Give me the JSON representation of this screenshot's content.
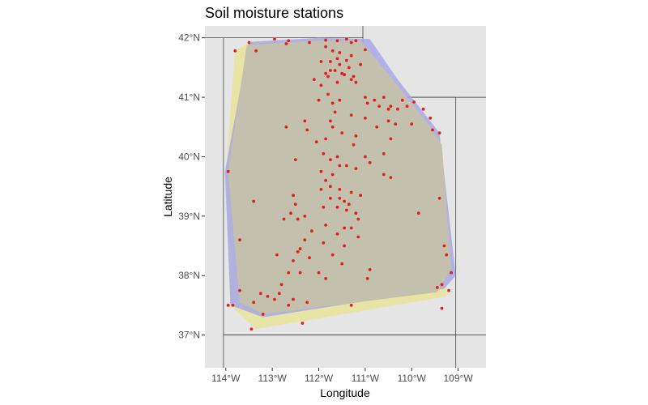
{
  "chart_data": {
    "type": "scatter",
    "title": "Soil moisture stations",
    "xlabel": "Longitude",
    "ylabel": "Latitude",
    "xlim": [
      -114.45,
      -108.4
    ],
    "ylim": [
      36.45,
      42.2
    ],
    "x_ticks": [
      {
        "value": -114,
        "label": "114°W"
      },
      {
        "value": -113,
        "label": "113°W"
      },
      {
        "value": -112,
        "label": "112°W"
      },
      {
        "value": -111,
        "label": "111°W"
      },
      {
        "value": -110,
        "label": "110°W"
      },
      {
        "value": -109,
        "label": "109°W"
      }
    ],
    "y_ticks": [
      {
        "value": 37,
        "label": "37°N"
      },
      {
        "value": 38,
        "label": "38°N"
      },
      {
        "value": 39,
        "label": "39°N"
      },
      {
        "value": 40,
        "label": "40°N"
      },
      {
        "value": 41,
        "label": "41°N"
      },
      {
        "value": 42,
        "label": "42°N"
      }
    ],
    "background_color": "#e5e5e5",
    "state_line_color": "#333333",
    "point_color": "#e0201e",
    "state_boundaries": [
      [
        [
          -114.05,
          42.0
        ],
        [
          -111.05,
          42.0
        ],
        [
          -111.05,
          41.0
        ],
        [
          -109.05,
          41.0
        ],
        [
          -109.05,
          37.0
        ],
        [
          -114.05,
          37.0
        ],
        [
          -114.05,
          42.0
        ]
      ],
      [
        [
          -111.05,
          42.25
        ],
        [
          -111.05,
          42.0
        ]
      ],
      [
        [
          -111.05,
          41.0
        ],
        [
          -108.3,
          41.0
        ]
      ],
      [
        [
          -109.05,
          37.0
        ],
        [
          -109.05,
          36.4
        ]
      ],
      [
        [
          -114.05,
          37.0
        ],
        [
          -114.05,
          36.4
        ]
      ],
      [
        [
          -114.05,
          42.0
        ],
        [
          -114.5,
          42.0
        ]
      ],
      [
        [
          -114.05,
          37.0
        ],
        [
          -108.3,
          37.0
        ]
      ]
    ],
    "hulls": [
      {
        "color": "#e8e48a",
        "opacity": 0.7,
        "points": [
          [
            -113.8,
            41.78
          ],
          [
            -113.5,
            41.92
          ],
          [
            -112.0,
            41.98
          ],
          [
            -111.1,
            41.98
          ],
          [
            -110.3,
            41.2
          ],
          [
            -109.45,
            40.28
          ],
          [
            -109.25,
            38.2
          ],
          [
            -109.25,
            37.65
          ],
          [
            -113.35,
            37.1
          ],
          [
            -113.9,
            37.5
          ],
          [
            -114.0,
            39.75
          ]
        ]
      },
      {
        "color": "#a8a8e8",
        "opacity": 0.85,
        "points": [
          [
            -113.5,
            41.93
          ],
          [
            -112.0,
            42.0
          ],
          [
            -110.9,
            41.98
          ],
          [
            -110.3,
            41.3
          ],
          [
            -109.65,
            40.65
          ],
          [
            -109.4,
            40.4
          ],
          [
            -109.05,
            38.0
          ],
          [
            -109.3,
            37.78
          ],
          [
            -113.2,
            37.3
          ],
          [
            -113.9,
            37.5
          ],
          [
            -114.02,
            39.75
          ]
        ]
      },
      {
        "color": "#c4c0ae",
        "opacity": 1,
        "points": [
          [
            -113.55,
            41.88
          ],
          [
            -112.0,
            41.95
          ],
          [
            -111.1,
            41.95
          ],
          [
            -110.2,
            41.1
          ],
          [
            -109.6,
            40.5
          ],
          [
            -109.35,
            40.2
          ],
          [
            -109.15,
            38.1
          ],
          [
            -109.45,
            37.72
          ],
          [
            -113.2,
            37.35
          ],
          [
            -113.7,
            37.55
          ],
          [
            -113.95,
            39.75
          ]
        ]
      }
    ],
    "points": [
      [
        -113.8,
        41.78
      ],
      [
        -113.5,
        41.92
      ],
      [
        -112.95,
        41.98
      ],
      [
        -112.65,
        41.95
      ],
      [
        -112.2,
        41.92
      ],
      [
        -111.85,
        41.96
      ],
      [
        -111.6,
        41.95
      ],
      [
        -111.4,
        41.98
      ],
      [
        -111.3,
        41.92
      ],
      [
        -111.2,
        41.95
      ],
      [
        -111.0,
        41.8
      ],
      [
        -111.85,
        41.85
      ],
      [
        -111.7,
        41.78
      ],
      [
        -111.55,
        41.75
      ],
      [
        -111.3,
        41.7
      ],
      [
        -111.6,
        41.65
      ],
      [
        -111.75,
        41.6
      ],
      [
        -111.55,
        41.55
      ],
      [
        -111.35,
        41.5
      ],
      [
        -111.65,
        41.45
      ],
      [
        -111.5,
        41.4
      ],
      [
        -111.8,
        41.35
      ],
      [
        -111.3,
        41.3
      ],
      [
        -111.2,
        41.25
      ],
      [
        -111.6,
        41.25
      ],
      [
        -111.4,
        41.62
      ],
      [
        -111.1,
        41.55
      ],
      [
        -111.75,
        41.45
      ],
      [
        -111.95,
        41.2
      ],
      [
        -112.1,
        41.3
      ],
      [
        -111.45,
        41.38
      ],
      [
        -111.25,
        41.35
      ],
      [
        -113.35,
        41.78
      ],
      [
        -112.7,
        41.9
      ],
      [
        -111.0,
        41.0
      ],
      [
        -110.95,
        40.9
      ],
      [
        -110.8,
        40.95
      ],
      [
        -110.6,
        41.0
      ],
      [
        -110.45,
        40.85
      ],
      [
        -110.3,
        40.8
      ],
      [
        -110.1,
        40.85
      ],
      [
        -109.95,
        40.92
      ],
      [
        -109.75,
        40.8
      ],
      [
        -109.6,
        40.65
      ],
      [
        -109.4,
        40.4
      ],
      [
        -110.7,
        40.85
      ],
      [
        -110.5,
        40.6
      ],
      [
        -110.35,
        40.55
      ],
      [
        -110.75,
        40.5
      ],
      [
        -111.0,
        40.65
      ],
      [
        -111.3,
        40.7
      ],
      [
        -111.55,
        40.95
      ],
      [
        -111.7,
        40.9
      ],
      [
        -111.65,
        40.75
      ],
      [
        -111.75,
        40.6
      ],
      [
        -111.7,
        40.5
      ],
      [
        -111.5,
        40.4
      ],
      [
        -111.2,
        40.35
      ],
      [
        -111.25,
        40.2
      ],
      [
        -111.0,
        40.0
      ],
      [
        -110.6,
        40.05
      ],
      [
        -110.45,
        40.3
      ],
      [
        -112.3,
        40.6
      ],
      [
        -112.25,
        40.45
      ],
      [
        -112.7,
        40.5
      ],
      [
        -111.85,
        40.3
      ],
      [
        -112.05,
        40.25
      ],
      [
        -111.9,
        40.05
      ],
      [
        -111.6,
        40.0
      ],
      [
        -111.75,
        39.95
      ],
      [
        -112.5,
        39.95
      ],
      [
        -111.4,
        39.85
      ],
      [
        -111.2,
        39.8
      ],
      [
        -110.9,
        39.9
      ],
      [
        -110.6,
        39.7
      ],
      [
        -110.45,
        39.65
      ],
      [
        -111.7,
        39.7
      ],
      [
        -111.85,
        39.6
      ],
      [
        -111.75,
        39.5
      ],
      [
        -111.55,
        39.45
      ],
      [
        -111.3,
        39.4
      ],
      [
        -111.1,
        39.35
      ],
      [
        -111.55,
        39.3
      ],
      [
        -111.45,
        39.25
      ],
      [
        -111.35,
        39.2
      ],
      [
        -111.6,
        39.15
      ],
      [
        -111.4,
        39.1
      ],
      [
        -111.2,
        39.05
      ],
      [
        -111.15,
        38.95
      ],
      [
        -111.3,
        38.8
      ],
      [
        -111.15,
        38.65
      ],
      [
        -111.45,
        38.5
      ],
      [
        -111.6,
        38.7
      ],
      [
        -111.85,
        38.85
      ],
      [
        -111.9,
        38.55
      ],
      [
        -111.7,
        38.35
      ],
      [
        -111.5,
        38.2
      ],
      [
        -112.0,
        38.05
      ],
      [
        -111.85,
        37.95
      ],
      [
        -112.15,
        38.75
      ],
      [
        -112.3,
        38.6
      ],
      [
        -112.45,
        38.4
      ],
      [
        -112.55,
        38.25
      ],
      [
        -112.65,
        38.05
      ],
      [
        -112.8,
        37.85
      ],
      [
        -112.85,
        37.7
      ],
      [
        -112.95,
        37.6
      ],
      [
        -113.1,
        37.65
      ],
      [
        -113.25,
        37.7
      ],
      [
        -113.2,
        37.35
      ],
      [
        -113.4,
        37.55
      ],
      [
        -113.7,
        37.75
      ],
      [
        -113.85,
        37.5
      ],
      [
        -113.95,
        37.5
      ],
      [
        -113.45,
        37.1
      ],
      [
        -112.35,
        37.2
      ],
      [
        -112.55,
        37.6
      ],
      [
        -112.65,
        37.5
      ],
      [
        -112.4,
        38.05
      ],
      [
        -112.4,
        38.45
      ],
      [
        -112.75,
        38.95
      ],
      [
        -112.45,
        38.95
      ],
      [
        -112.3,
        39.0
      ],
      [
        -112.5,
        39.2
      ],
      [
        -112.55,
        39.35
      ],
      [
        -112.6,
        39.05
      ],
      [
        -112.9,
        38.35
      ],
      [
        -113.4,
        39.25
      ],
      [
        -113.7,
        38.6
      ],
      [
        -113.95,
        39.75
      ],
      [
        -111.95,
        39.75
      ],
      [
        -111.75,
        39.3
      ],
      [
        -111.95,
        39.45
      ],
      [
        -111.55,
        39.85
      ],
      [
        -110.2,
        40.95
      ],
      [
        -110.0,
        40.55
      ],
      [
        -109.55,
        40.45
      ],
      [
        -109.4,
        39.3
      ],
      [
        -109.85,
        39.05
      ],
      [
        -109.3,
        38.5
      ],
      [
        -109.25,
        38.35
      ],
      [
        -109.15,
        38.05
      ],
      [
        -109.2,
        37.75
      ],
      [
        -109.35,
        37.85
      ],
      [
        -109.45,
        37.8
      ],
      [
        -109.35,
        37.45
      ],
      [
        -110.9,
        38.1
      ],
      [
        -110.95,
        37.95
      ],
      [
        -111.3,
        37.5
      ],
      [
        -112.25,
        37.55
      ],
      [
        -112.2,
        38.3
      ],
      [
        -111.45,
        38.8
      ],
      [
        -110.5,
        40.8
      ],
      [
        -111.9,
        39.15
      ],
      [
        -111.8,
        41.05
      ],
      [
        -112.0,
        40.95
      ],
      [
        -111.95,
        41.6
      ],
      [
        -111.85,
        41.4
      ]
    ]
  }
}
